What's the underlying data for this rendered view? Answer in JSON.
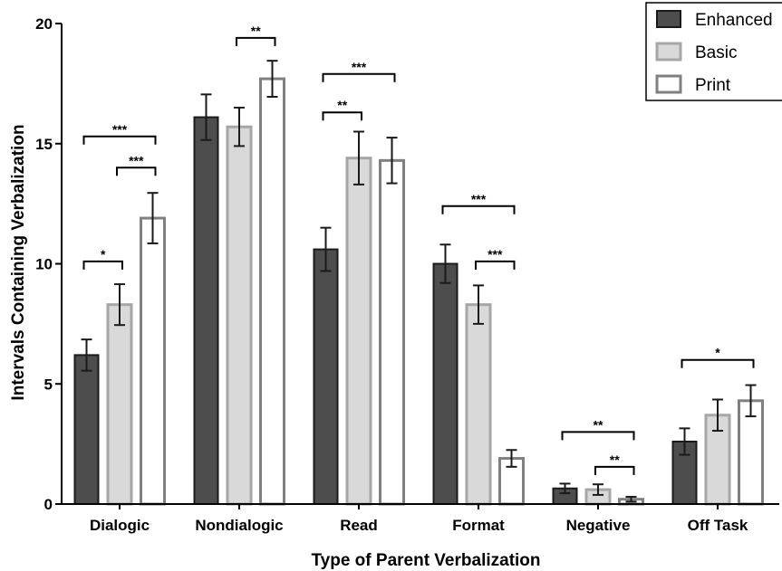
{
  "chart_data": {
    "type": "bar",
    "title": "",
    "xlabel": "Type of Parent Verbalization",
    "ylabel": "Intervals Containing Verbalization",
    "ylim": [
      0,
      20
    ],
    "yticks": [
      "0",
      "5",
      "10",
      "15",
      "20"
    ],
    "categories": [
      "Dialogic",
      "Nondialogic",
      "Read",
      "Format",
      "Negative",
      "Off Task"
    ],
    "series": [
      {
        "name": "Enhanced",
        "color": "#4d4d4d",
        "edge": "#1a1a1a",
        "values": [
          6.2,
          16.1,
          10.6,
          10.0,
          0.65,
          2.6
        ],
        "errors": [
          0.65,
          0.95,
          0.9,
          0.8,
          0.2,
          0.55
        ]
      },
      {
        "name": "Basic",
        "color": "#d9d9d9",
        "edge": "#a6a6a6",
        "values": [
          8.3,
          15.7,
          14.4,
          8.3,
          0.6,
          3.7
        ],
        "errors": [
          0.85,
          0.8,
          1.1,
          0.8,
          0.22,
          0.65
        ]
      },
      {
        "name": "Print",
        "color": "#ffffff",
        "edge": "#808080",
        "values": [
          11.9,
          17.7,
          14.3,
          1.9,
          0.2,
          4.3
        ],
        "errors": [
          1.05,
          0.75,
          0.95,
          0.35,
          0.1,
          0.65
        ]
      }
    ],
    "significance": [
      {
        "category": 0,
        "from": 0,
        "to": 1,
        "label": "*",
        "y": 10.1
      },
      {
        "category": 0,
        "from": 0,
        "to": 2,
        "label": "***",
        "y": 15.3
      },
      {
        "category": 0,
        "from": 1,
        "to": 2,
        "label": "***",
        "y": 14.0
      },
      {
        "category": 1,
        "from": 1,
        "to": 2,
        "label": "**",
        "y": 19.4
      },
      {
        "category": 2,
        "from": 0,
        "to": 1,
        "label": "**",
        "y": 16.3
      },
      {
        "category": 2,
        "from": 0,
        "to": 2,
        "label": "***",
        "y": 17.9
      },
      {
        "category": 3,
        "from": 0,
        "to": 2,
        "label": "***",
        "y": 12.4
      },
      {
        "category": 3,
        "from": 1,
        "to": 2,
        "label": "***",
        "y": 10.1
      },
      {
        "category": 4,
        "from": 0,
        "to": 2,
        "label": "**",
        "y": 3.0
      },
      {
        "category": 4,
        "from": 1,
        "to": 2,
        "label": "**",
        "y": 1.55
      },
      {
        "category": 5,
        "from": 0,
        "to": 2,
        "label": "*",
        "y": 6.0
      }
    ],
    "legend_position": "top-right",
    "grid": false
  }
}
